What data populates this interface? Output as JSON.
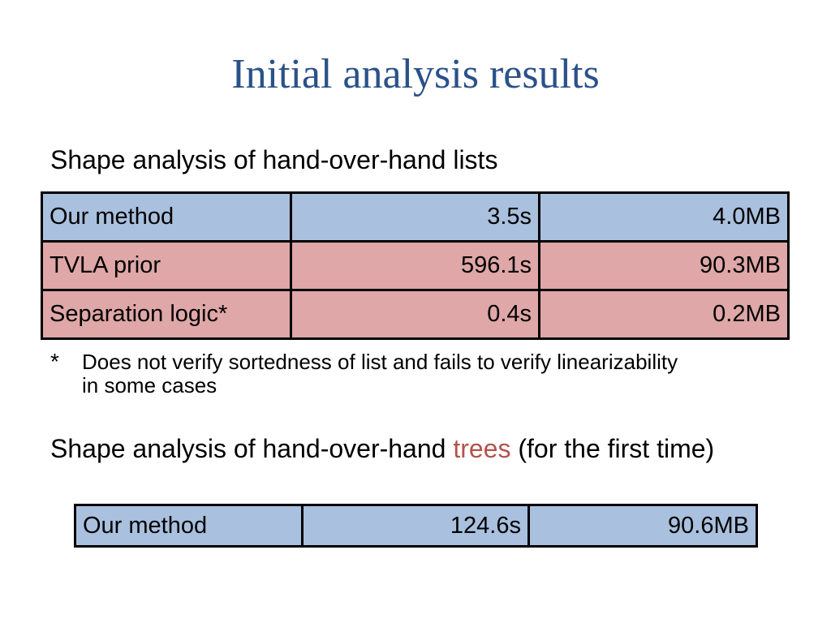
{
  "title": "Initial analysis results",
  "section1": {
    "heading": "Shape analysis of hand-over-hand lists",
    "table": {
      "rows": [
        [
          "Our method",
          "3.5s",
          "4.0MB"
        ],
        [
          "TVLA prior",
          "596.1s",
          "90.3MB"
        ],
        [
          "Separation logic*",
          "0.4s",
          "0.2MB"
        ]
      ]
    },
    "footnote": {
      "marker": "*",
      "text": "Does not verify sortedness of list and fails to verify linearizability in some cases"
    }
  },
  "section2": {
    "heading": [
      "Shape analysis of hand-over-hand",
      "trees",
      "(for the first time)"
    ],
    "table": {
      "rows": [
        [
          "Our method",
          "124.6s",
          "90.6MB"
        ]
      ]
    }
  }
}
